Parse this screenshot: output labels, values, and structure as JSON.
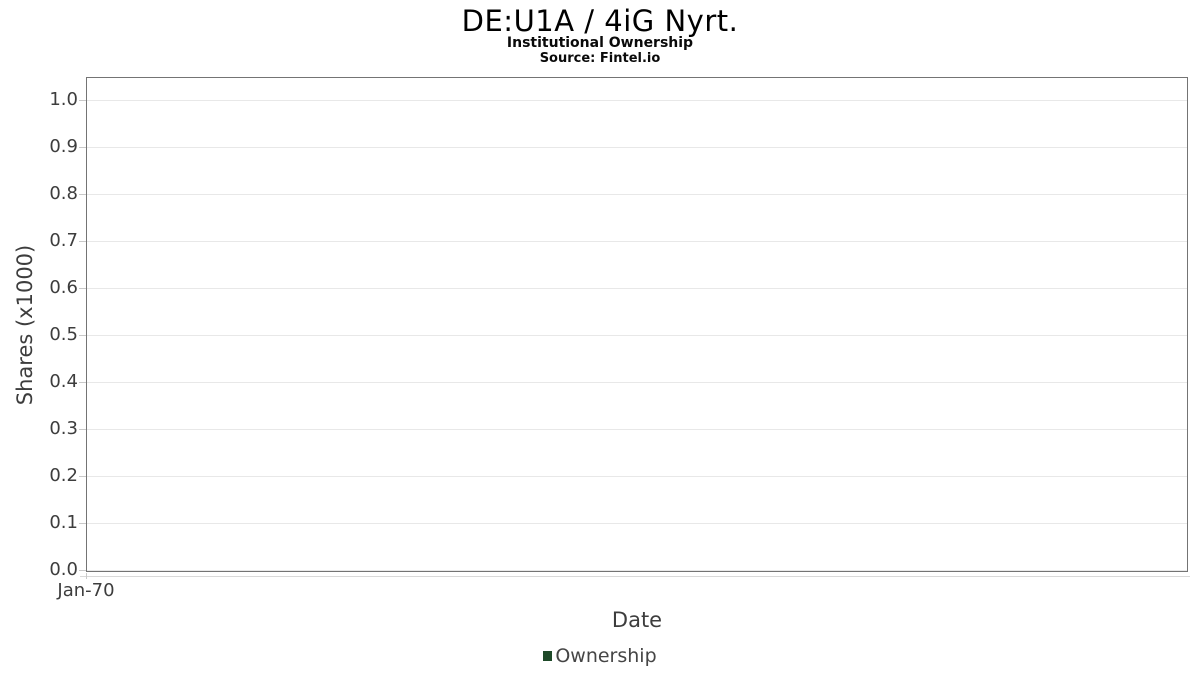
{
  "header": {
    "title": "DE:U1A / 4iG Nyrt.",
    "subtitle": "Institutional Ownership",
    "source": "Source: Fintel.io"
  },
  "axes": {
    "x_title": "Date",
    "y_title": "Shares (x1000)"
  },
  "colors": {
    "legend_swatch": "#1e4a29",
    "plot_border": "#747474",
    "gridline": "#e8e8e8",
    "tick_mark": "#c9c9c9",
    "tick_label": "#3d3d3d"
  },
  "chart_data": {
    "type": "bar",
    "title": "DE:U1A / 4iG Nyrt.",
    "subtitle": "Institutional Ownership",
    "source_note": "Source: Fintel.io",
    "xlabel": "Date",
    "ylabel": "Shares (x1000)",
    "x_tick_labels": [
      "Jan-70"
    ],
    "y_tick_values": [
      1.0,
      0.9,
      0.8,
      0.7,
      0.6,
      0.5,
      0.4,
      0.3,
      0.2,
      0.1,
      0.0
    ],
    "y_tick_labels": [
      "1.0",
      "0.9",
      "0.8",
      "0.7",
      "0.6",
      "0.5",
      "0.4",
      "0.3",
      "0.2",
      "0.1",
      "0.0"
    ],
    "ylim": [
      0,
      1.05
    ],
    "grid": "horizontal",
    "legend": {
      "position": "bottom-center",
      "entries": [
        {
          "label": "Ownership",
          "color": "#1e4a29",
          "marker": "square"
        }
      ]
    },
    "series": [
      {
        "name": "Ownership",
        "x": [],
        "values": []
      }
    ]
  }
}
